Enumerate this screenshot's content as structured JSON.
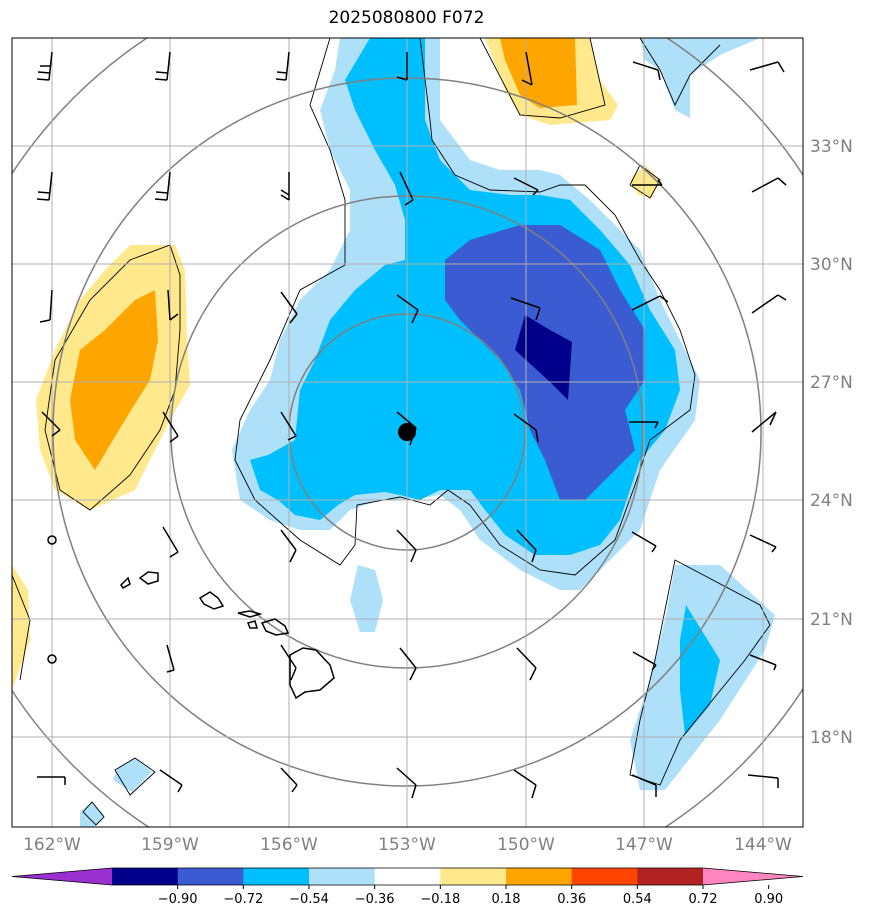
{
  "title": "2025080800 F072",
  "lat_labels": [
    "33°N",
    "30°N",
    "27°N",
    "24°N",
    "21°N",
    "18°N"
  ],
  "lon_labels": [
    "162°W",
    "159°W",
    "156°W",
    "153°W",
    "150°W",
    "147°W",
    "144°W"
  ],
  "colorbar": {
    "tick_labels": [
      "−0.90",
      "−0.72",
      "−0.54",
      "−0.36",
      "−0.18",
      "0.18",
      "0.36",
      "0.54",
      "0.72",
      "0.90"
    ],
    "colors": [
      "#9b30d0",
      "#00008b",
      "#3a5bd1",
      "#00bfff",
      "#aee0fa",
      "#ffffff",
      "#ffe98c",
      "#ffa500",
      "#ff4500",
      "#b22222",
      "#ff85c0"
    ]
  },
  "palette": {
    "light_blue": "#aee0fa",
    "blue": "#00bfff",
    "royal_blue": "#3a5bd1",
    "navy": "#00008b",
    "yellow": "#ffe98c",
    "orange": "#ffa500",
    "range_circle": "#808080",
    "grid": "#b0b0b0"
  },
  "storm_center": {
    "lon": "153°W",
    "lat": "25.7°N"
  }
}
